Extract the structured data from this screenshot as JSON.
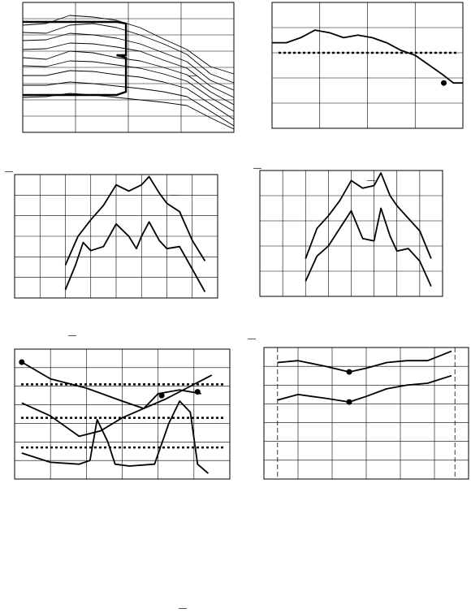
{
  "figure": {
    "marks": {
      "panel_a_top": "—",
      "panel_c_top": "—",
      "panel_d_top": "—",
      "panel_c_label": "—",
      "panel_d_label": "—",
      "panel_e_top": "—",
      "panel_f_top": "—",
      "page_mark": "—"
    }
  },
  "chart_data": [
    {
      "type": "line",
      "panel": "a",
      "grid": true,
      "xlim": [
        0,
        4.5
      ],
      "ylim": [
        0,
        16
      ],
      "series": [
        {
          "values": [
            [
              0,
              13.2
            ],
            [
              0.5,
              13.4
            ],
            [
              1.0,
              14.4
            ],
            [
              1.5,
              14.2
            ],
            [
              2.0,
              13.8
            ],
            [
              2.5,
              12.9
            ],
            [
              3.0,
              11.5
            ],
            [
              3.5,
              10.2
            ],
            [
              4.0,
              8.1
            ],
            [
              4.5,
              7.2
            ]
          ]
        },
        {
          "values": [
            [
              0,
              12.3
            ],
            [
              0.5,
              12.2
            ],
            [
              1.0,
              13.2
            ],
            [
              1.5,
              13.4
            ],
            [
              2.0,
              12.9
            ],
            [
              2.5,
              12.0
            ],
            [
              3.0,
              10.9
            ],
            [
              3.5,
              9.6
            ],
            [
              4.0,
              7.2
            ],
            [
              4.5,
              6.1
            ]
          ]
        },
        {
          "values": [
            [
              0,
              11.3
            ],
            [
              0.5,
              11.4
            ],
            [
              1.0,
              12.2
            ],
            [
              1.5,
              12.0
            ],
            [
              2.0,
              11.6
            ],
            [
              2.5,
              10.9
            ],
            [
              3.0,
              9.8
            ],
            [
              3.5,
              8.7
            ],
            [
              4.0,
              6.4
            ],
            [
              4.5,
              5.2
            ]
          ]
        },
        {
          "values": [
            [
              0,
              10.2
            ],
            [
              0.5,
              10.3
            ],
            [
              1.0,
              11.0
            ],
            [
              1.5,
              10.9
            ],
            [
              2.0,
              10.5
            ],
            [
              2.5,
              10.0
            ],
            [
              3.0,
              8.9
            ],
            [
              3.5,
              7.9
            ],
            [
              4.0,
              5.7
            ],
            [
              4.5,
              4.3
            ]
          ]
        },
        {
          "values": [
            [
              0,
              9.2
            ],
            [
              0.5,
              9.0
            ],
            [
              1.0,
              10.0
            ],
            [
              1.5,
              9.8
            ],
            [
              2.0,
              9.2
            ],
            [
              2.5,
              8.8
            ],
            [
              3.0,
              8.0
            ],
            [
              3.5,
              7.1
            ],
            [
              4.0,
              5.0
            ],
            [
              4.5,
              3.4
            ]
          ]
        },
        {
          "values": [
            [
              0,
              8.2
            ],
            [
              0.5,
              8.1
            ],
            [
              1.0,
              8.8
            ],
            [
              1.5,
              8.7
            ],
            [
              2.0,
              8.3
            ],
            [
              2.5,
              7.9
            ],
            [
              3.0,
              7.2
            ],
            [
              3.5,
              6.3
            ],
            [
              4.0,
              4.3
            ],
            [
              4.5,
              2.6
            ]
          ]
        },
        {
          "values": [
            [
              0,
              7.0
            ],
            [
              0.5,
              7.0
            ],
            [
              1.0,
              7.6
            ],
            [
              1.5,
              7.5
            ],
            [
              2.0,
              7.1
            ],
            [
              2.5,
              6.8
            ],
            [
              3.0,
              6.2
            ],
            [
              3.5,
              5.4
            ],
            [
              4.0,
              3.5
            ],
            [
              4.5,
              1.6
            ]
          ]
        },
        {
          "values": [
            [
              0,
              5.8
            ],
            [
              0.5,
              5.8
            ],
            [
              1.0,
              6.2
            ],
            [
              1.5,
              6.0
            ],
            [
              2.0,
              5.7
            ],
            [
              2.5,
              5.4
            ],
            [
              3.0,
              5.0
            ],
            [
              3.5,
              4.4
            ],
            [
              4.0,
              2.6
            ],
            [
              4.5,
              0.8
            ]
          ]
        },
        {
          "values": [
            [
              0,
              4.3
            ],
            [
              0.5,
              4.4
            ],
            [
              1.0,
              4.8
            ],
            [
              1.5,
              4.6
            ],
            [
              2.0,
              4.3
            ],
            [
              2.5,
              4.0
            ],
            [
              3.0,
              3.7
            ],
            [
              3.5,
              3.3
            ],
            [
              4.0,
              1.8
            ],
            [
              4.5,
              0.4
            ]
          ]
        }
      ],
      "highlight": [
        [
          0,
          13.6
        ],
        [
          1.0,
          13.6
        ],
        [
          2.0,
          13.6
        ],
        [
          2.2,
          13.4
        ],
        [
          2.2,
          9.5
        ],
        [
          2.0,
          9.5
        ],
        [
          2.2,
          9.2
        ],
        [
          2.2,
          5.0
        ],
        [
          2.0,
          4.6
        ],
        [
          0,
          4.6
        ]
      ]
    },
    {
      "type": "line",
      "panel": "b",
      "grid": true,
      "xlim": [
        0,
        4
      ],
      "ylim": [
        0,
        5
      ],
      "series": [
        {
          "values": [
            [
              0,
              3.4
            ],
            [
              0.3,
              3.4
            ],
            [
              0.6,
              3.6
            ],
            [
              0.9,
              3.9
            ],
            [
              1.2,
              3.8
            ],
            [
              1.5,
              3.6
            ],
            [
              1.8,
              3.7
            ],
            [
              2.1,
              3.6
            ],
            [
              2.4,
              3.4
            ],
            [
              2.7,
              3.1
            ],
            [
              3.0,
              2.9
            ],
            [
              3.3,
              2.5
            ],
            [
              3.6,
              2.1
            ],
            [
              3.8,
              1.8
            ],
            [
              4.0,
              1.8
            ]
          ]
        }
      ],
      "threshold": 3.0,
      "marker": [
        3.6,
        1.8
      ]
    },
    {
      "type": "line",
      "panel": "c",
      "grid": true,
      "xlim": [
        0,
        8
      ],
      "ylim": [
        0,
        6
      ],
      "series": [
        {
          "values": [
            [
              2.0,
              1.6
            ],
            [
              2.5,
              3.0
            ],
            [
              3.0,
              3.8
            ],
            [
              3.5,
              4.5
            ],
            [
              4.0,
              5.5
            ],
            [
              4.5,
              5.2
            ],
            [
              5.0,
              5.5
            ],
            [
              5.3,
              5.9
            ],
            [
              5.7,
              5.1
            ],
            [
              6.0,
              4.6
            ],
            [
              6.5,
              4.2
            ],
            [
              7.0,
              2.8
            ],
            [
              7.5,
              1.8
            ]
          ]
        },
        {
          "values": [
            [
              2.0,
              0.4
            ],
            [
              2.4,
              1.6
            ],
            [
              2.7,
              2.7
            ],
            [
              3.0,
              2.3
            ],
            [
              3.5,
              2.5
            ],
            [
              4.0,
              3.6
            ],
            [
              4.5,
              3.0
            ],
            [
              4.8,
              2.4
            ],
            [
              5.0,
              3.0
            ],
            [
              5.3,
              3.7
            ],
            [
              5.7,
              2.8
            ],
            [
              6.0,
              2.4
            ],
            [
              6.5,
              2.5
            ],
            [
              7.0,
              1.4
            ],
            [
              7.5,
              0.3
            ]
          ]
        }
      ]
    },
    {
      "type": "line",
      "panel": "d",
      "grid": true,
      "xlim": [
        0,
        8
      ],
      "ylim": [
        0,
        5
      ],
      "series": [
        {
          "values": [
            [
              2.0,
              1.5
            ],
            [
              2.5,
              2.7
            ],
            [
              3.0,
              3.2
            ],
            [
              3.5,
              3.8
            ],
            [
              4.0,
              4.6
            ],
            [
              4.5,
              4.3
            ],
            [
              5.0,
              4.4
            ],
            [
              5.3,
              4.9
            ],
            [
              5.7,
              4.0
            ],
            [
              6.0,
              3.6
            ],
            [
              6.5,
              3.1
            ],
            [
              7.0,
              2.6
            ],
            [
              7.5,
              1.5
            ]
          ]
        },
        {
          "values": [
            [
              2.0,
              0.6
            ],
            [
              2.5,
              1.6
            ],
            [
              3.0,
              2.0
            ],
            [
              3.5,
              2.7
            ],
            [
              4.0,
              3.4
            ],
            [
              4.5,
              2.3
            ],
            [
              5.0,
              2.2
            ],
            [
              5.3,
              3.5
            ],
            [
              5.7,
              2.4
            ],
            [
              6.0,
              1.8
            ],
            [
              6.5,
              1.9
            ],
            [
              7.0,
              1.4
            ],
            [
              7.5,
              0.4
            ]
          ]
        }
      ]
    },
    {
      "type": "line",
      "panel": "e",
      "grid": true,
      "xlim": [
        0,
        6
      ],
      "ylim": [
        0,
        7
      ],
      "series": [
        {
          "values": [
            [
              0.2,
              6.3
            ],
            [
              1.0,
              5.4
            ],
            [
              2.0,
              4.9
            ],
            [
              3.0,
              4.2
            ],
            [
              3.6,
              3.8
            ],
            [
              4.2,
              4.3
            ],
            [
              4.8,
              4.9
            ],
            [
              5.5,
              5.6
            ]
          ]
        },
        {
          "values": [
            [
              0.2,
              4.1
            ],
            [
              1.0,
              3.4
            ],
            [
              1.8,
              2.3
            ],
            [
              2.4,
              2.6
            ],
            [
              3.0,
              3.3
            ],
            [
              3.6,
              3.8
            ],
            [
              4.0,
              4.6
            ],
            [
              4.6,
              4.8
            ],
            [
              5.2,
              4.6
            ]
          ]
        },
        {
          "values": [
            [
              0.2,
              1.4
            ],
            [
              1.0,
              0.9
            ],
            [
              1.8,
              0.8
            ],
            [
              2.1,
              1.0
            ],
            [
              2.3,
              3.2
            ],
            [
              2.6,
              2.0
            ],
            [
              2.8,
              0.8
            ],
            [
              3.2,
              0.7
            ],
            [
              3.9,
              0.8
            ],
            [
              4.3,
              3.0
            ],
            [
              4.6,
              4.2
            ],
            [
              4.9,
              3.6
            ],
            [
              5.1,
              0.8
            ],
            [
              5.4,
              0.3
            ]
          ]
        }
      ],
      "thresholds": [
        5.1,
        3.3,
        1.7
      ],
      "markers": [
        [
          0.2,
          6.3
        ],
        [
          4.1,
          4.5
        ],
        [
          5.1,
          4.7
        ]
      ]
    },
    {
      "type": "line",
      "panel": "f",
      "grid": true,
      "xlim": [
        0,
        6
      ],
      "ylim": [
        0,
        7
      ],
      "series": [
        {
          "values": [
            [
              0.4,
              6.2
            ],
            [
              1.0,
              6.3
            ],
            [
              1.8,
              6.0
            ],
            [
              2.5,
              5.7
            ],
            [
              3.0,
              5.9
            ],
            [
              3.6,
              6.2
            ],
            [
              4.2,
              6.3
            ],
            [
              4.8,
              6.3
            ],
            [
              5.5,
              6.8
            ]
          ]
        },
        {
          "values": [
            [
              0.4,
              4.2
            ],
            [
              1.0,
              4.5
            ],
            [
              1.8,
              4.3
            ],
            [
              2.5,
              4.1
            ],
            [
              3.0,
              4.4
            ],
            [
              3.6,
              4.8
            ],
            [
              4.2,
              5.0
            ],
            [
              4.8,
              5.1
            ],
            [
              5.5,
              5.5
            ]
          ]
        }
      ],
      "markers": [
        [
          2.5,
          5.7
        ],
        [
          2.5,
          4.1
        ]
      ],
      "bounds": [
        0.4,
        5.6
      ]
    }
  ]
}
